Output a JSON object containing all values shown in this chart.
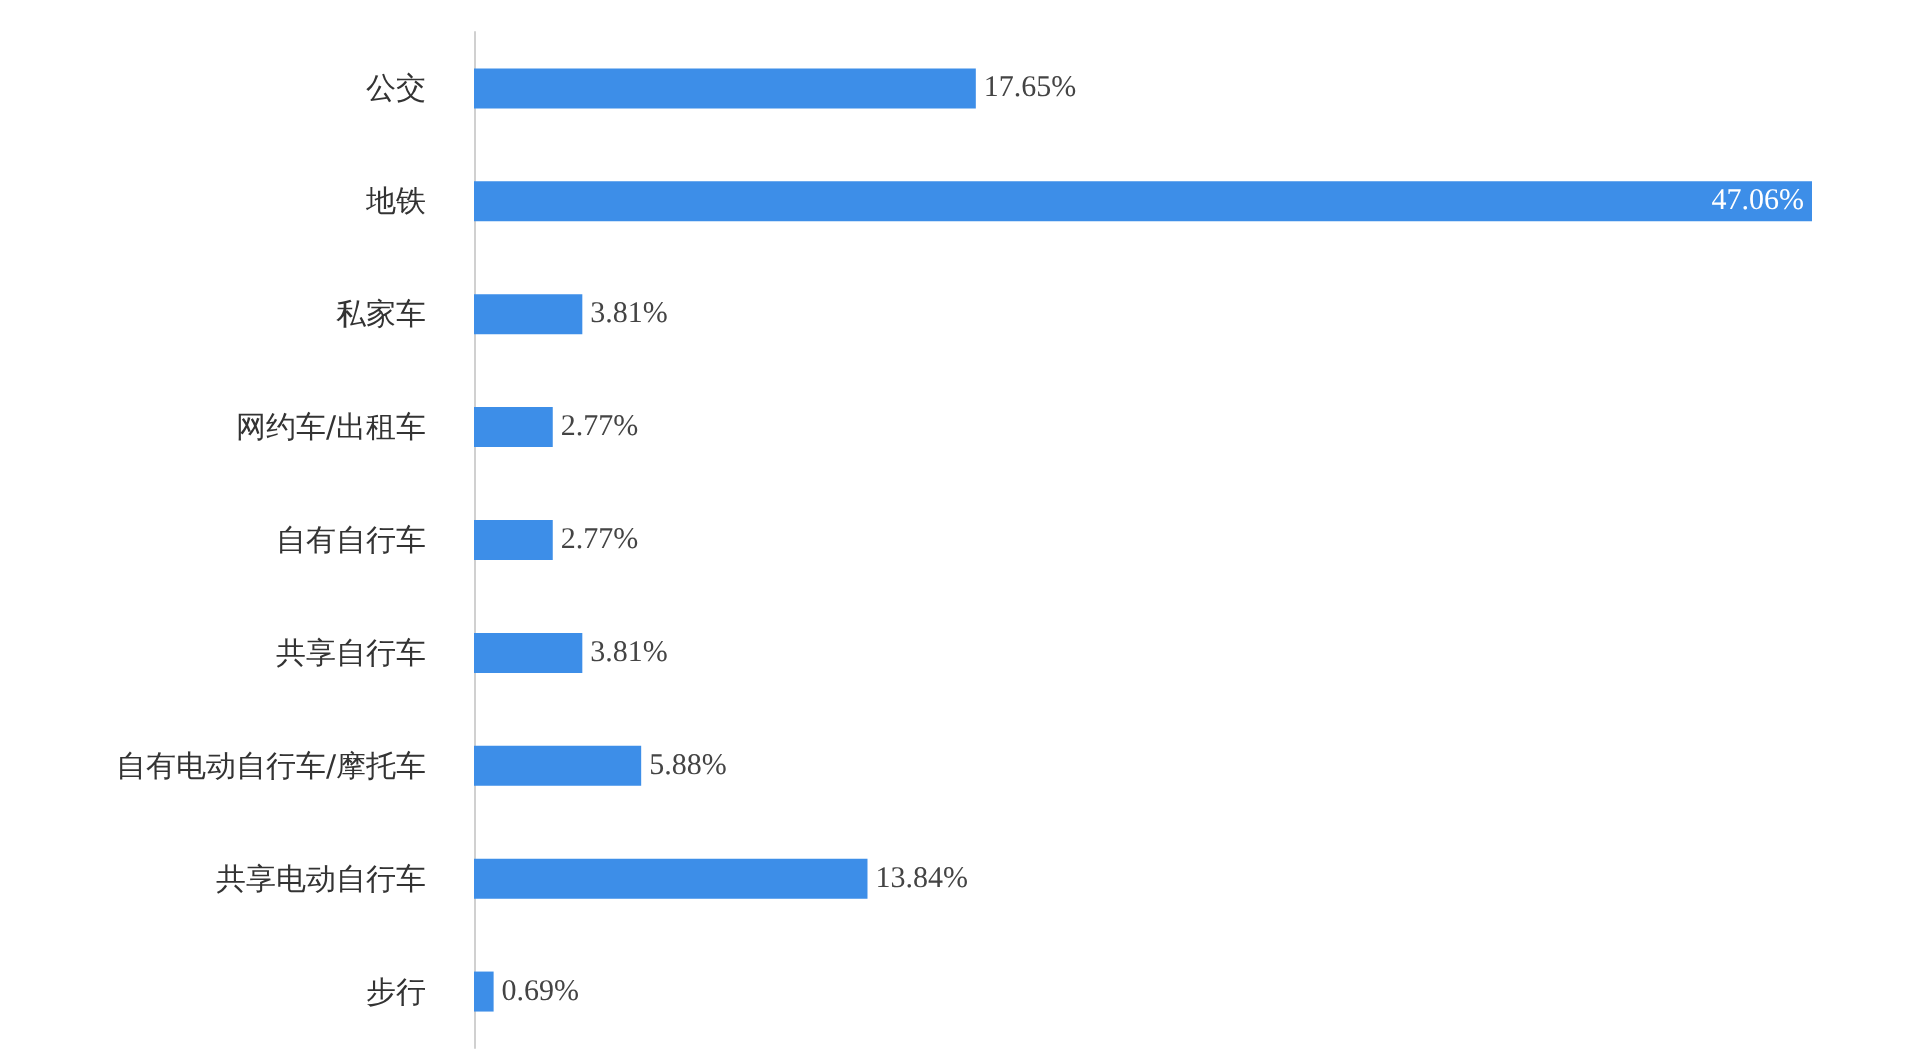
{
  "chart_data": {
    "type": "bar",
    "orientation": "horizontal",
    "categories": [
      "公交",
      "地铁",
      "私家车",
      "网约车/出租车",
      "自有自行车",
      "共享自行车",
      "自有电动自行车/摩托车",
      "共享电动自行车",
      "步行"
    ],
    "values": [
      17.65,
      47.06,
      3.81,
      2.77,
      2.77,
      3.81,
      5.88,
      13.84,
      0.69
    ],
    "color": "#3d8ee8",
    "value_labels": [
      "17.65%",
      "47.06%",
      "3.81%",
      "2.77%",
      "2.77%",
      "3.81%",
      "5.88%",
      "13.84%",
      "0.69%"
    ]
  }
}
